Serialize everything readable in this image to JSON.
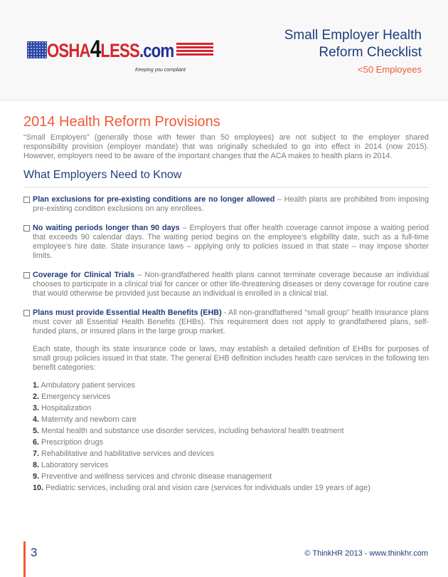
{
  "header": {
    "logo_text": "OSHA4LESS.com",
    "logo_parts": [
      "OSHA",
      "4",
      "LESS",
      ".com"
    ],
    "tagline": "Keeping you compliant",
    "title_line1": "Small Employer Health",
    "title_line2": "Reform Checklist",
    "subtitle": "<50 Employees"
  },
  "main": {
    "title": "2014 Health Reform Provisions",
    "intro": "“Small Employers” (generally those with fewer than 50 employees) are not subject to the employer shared responsibility provision (employer mandate) that was originally scheduled to go into effect in 2014 (now 2015).  However, employers need to be aware of the important changes that the ACA makes to health plans in 2014.",
    "section": "What Employers Need to Know",
    "items": [
      {
        "heading": "Plan exclusions for pre-existing conditions are no longer allowed",
        "text": " – Health plans are prohibited from imposing pre-existing condition exclusions on any enrollees."
      },
      {
        "heading": "No waiting periods longer than 90 days",
        "text": " – Employers that offer health coverage cannot impose a waiting period that exceeds 90 calendar days.  The waiting period begins on the employee’s eligibility date, such as a full-time employee’s hire date.  State insurance laws – applying only to policies issued in that state – may impose shorter limits."
      },
      {
        "heading": "Coverage for Clinical Trials",
        "text": " – Non-grandfathered health plans cannot terminate coverage because an individual chooses to participate in a clinical trial for cancer or other life-threatening diseases or deny coverage for routine care that would otherwise be provided just because an individual is enrolled in a clinical trial."
      },
      {
        "heading": "Plans must provide Essential Health Benefits (EHB)",
        "text": " - All non-grandfathered “small group” health insurance plans must cover all Essential Health Benefits (EHBs). This requirement does not apply to grandfathered plans, self-funded plans, or insured plans in the large group market."
      }
    ],
    "ehb_paragraph": "Each state, though its state insurance code or laws, may establish a detailed definition of EHBs for purposes of small group policies issued in that state.  The general EHB definition includes health care services in the following ten benefit categories:",
    "categories": [
      {
        "num": "1.",
        "label": "Ambulatory patient services"
      },
      {
        "num": "2.",
        "label": "Emergency services"
      },
      {
        "num": "3.",
        "label": "Hospitalization"
      },
      {
        "num": "4.",
        "label": "Maternity and newborn care"
      },
      {
        "num": "5.",
        "label": "Mental health and substance use disorder services, including behavioral health treatment"
      },
      {
        "num": "6.",
        "label": "Prescription drugs"
      },
      {
        "num": "7.",
        "label": "Rehabilitative and habilitative services and devices"
      },
      {
        "num": "8.",
        "label": "Laboratory services"
      },
      {
        "num": "9.",
        "label": "Preventive and wellness services and chronic disease management"
      },
      {
        "num": "10.",
        "label": "Pediatric services, including oral and vision care (services for individuals under 19 years of age)"
      }
    ]
  },
  "footer": {
    "page": "3",
    "copyright": "© ThinkHR 2013  -  www.thinkhr.com"
  },
  "colors": {
    "accent": "#f05a3a",
    "navy": "#1d3d7c",
    "body": "#7a7a7a"
  }
}
